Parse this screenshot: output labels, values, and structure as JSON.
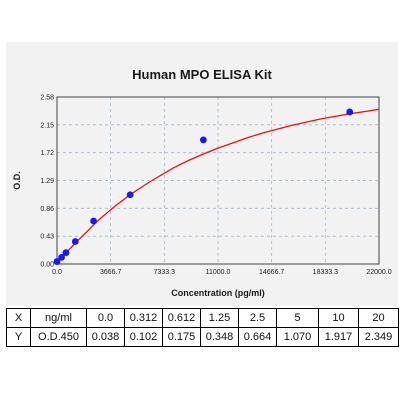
{
  "chart_data": {
    "type": "scatter",
    "title": "Human MPO ELISA Kit",
    "xlabel": "Concentration (pg/ml)",
    "ylabel": "O.D.",
    "xlim": [
      0,
      22000
    ],
    "ylim": [
      0,
      2.58
    ],
    "x_ticks": [
      "0.0",
      "3666.7",
      "7333.3",
      "11000.0",
      "14666.7",
      "18333.3",
      "22000.0"
    ],
    "y_ticks": [
      "0.00",
      "0.43",
      "0.86",
      "1.29",
      "1.72",
      "2.15",
      "2.58"
    ],
    "x_tick_values": [
      0,
      3666.7,
      7333.3,
      11000,
      14666.7,
      18333.3,
      22000
    ],
    "y_tick_values": [
      0,
      0.43,
      0.86,
      1.29,
      1.72,
      2.15,
      2.58
    ],
    "grid": true,
    "series": [
      {
        "type": "scatter",
        "color": "#1a1aee",
        "points": [
          {
            "x": 0,
            "y": 0.038
          },
          {
            "x": 312,
            "y": 0.102
          },
          {
            "x": 612,
            "y": 0.175
          },
          {
            "x": 1250,
            "y": 0.348
          },
          {
            "x": 2500,
            "y": 0.664
          },
          {
            "x": 5000,
            "y": 1.07
          },
          {
            "x": 10000,
            "y": 1.917
          },
          {
            "x": 20000,
            "y": 2.349
          }
        ]
      },
      {
        "type": "line",
        "color": "#ee1111",
        "points": [
          {
            "x": 0,
            "y": 0.038
          },
          {
            "x": 250,
            "y": 0.09
          },
          {
            "x": 500,
            "y": 0.145
          },
          {
            "x": 1000,
            "y": 0.262
          },
          {
            "x": 1500,
            "y": 0.38
          },
          {
            "x": 2000,
            "y": 0.49
          },
          {
            "x": 2500,
            "y": 0.605
          },
          {
            "x": 3000,
            "y": 0.71
          },
          {
            "x": 4000,
            "y": 0.9
          },
          {
            "x": 5000,
            "y": 1.07
          },
          {
            "x": 6000,
            "y": 1.22
          },
          {
            "x": 7000,
            "y": 1.36
          },
          {
            "x": 8000,
            "y": 1.49
          },
          {
            "x": 9000,
            "y": 1.6
          },
          {
            "x": 10000,
            "y": 1.7
          },
          {
            "x": 11000,
            "y": 1.79
          },
          {
            "x": 12000,
            "y": 1.87
          },
          {
            "x": 13000,
            "y": 1.95
          },
          {
            "x": 14000,
            "y": 2.02
          },
          {
            "x": 15000,
            "y": 2.08
          },
          {
            "x": 16000,
            "y": 2.14
          },
          {
            "x": 17000,
            "y": 2.19
          },
          {
            "x": 18000,
            "y": 2.24
          },
          {
            "x": 19000,
            "y": 2.28
          },
          {
            "x": 20000,
            "y": 2.32
          },
          {
            "x": 21000,
            "y": 2.355
          },
          {
            "x": 22000,
            "y": 2.39
          }
        ]
      }
    ]
  },
  "table": {
    "rows": [
      [
        "X",
        "ng/ml",
        "0.0",
        "0.312",
        "0.612",
        "1.25",
        "2.5",
        "5",
        "10",
        "20"
      ],
      [
        "Y",
        "O.D.450",
        "0.038",
        "0.102",
        "0.175",
        "0.348",
        "0.664",
        "1.070",
        "1.917",
        "2.349"
      ]
    ]
  }
}
